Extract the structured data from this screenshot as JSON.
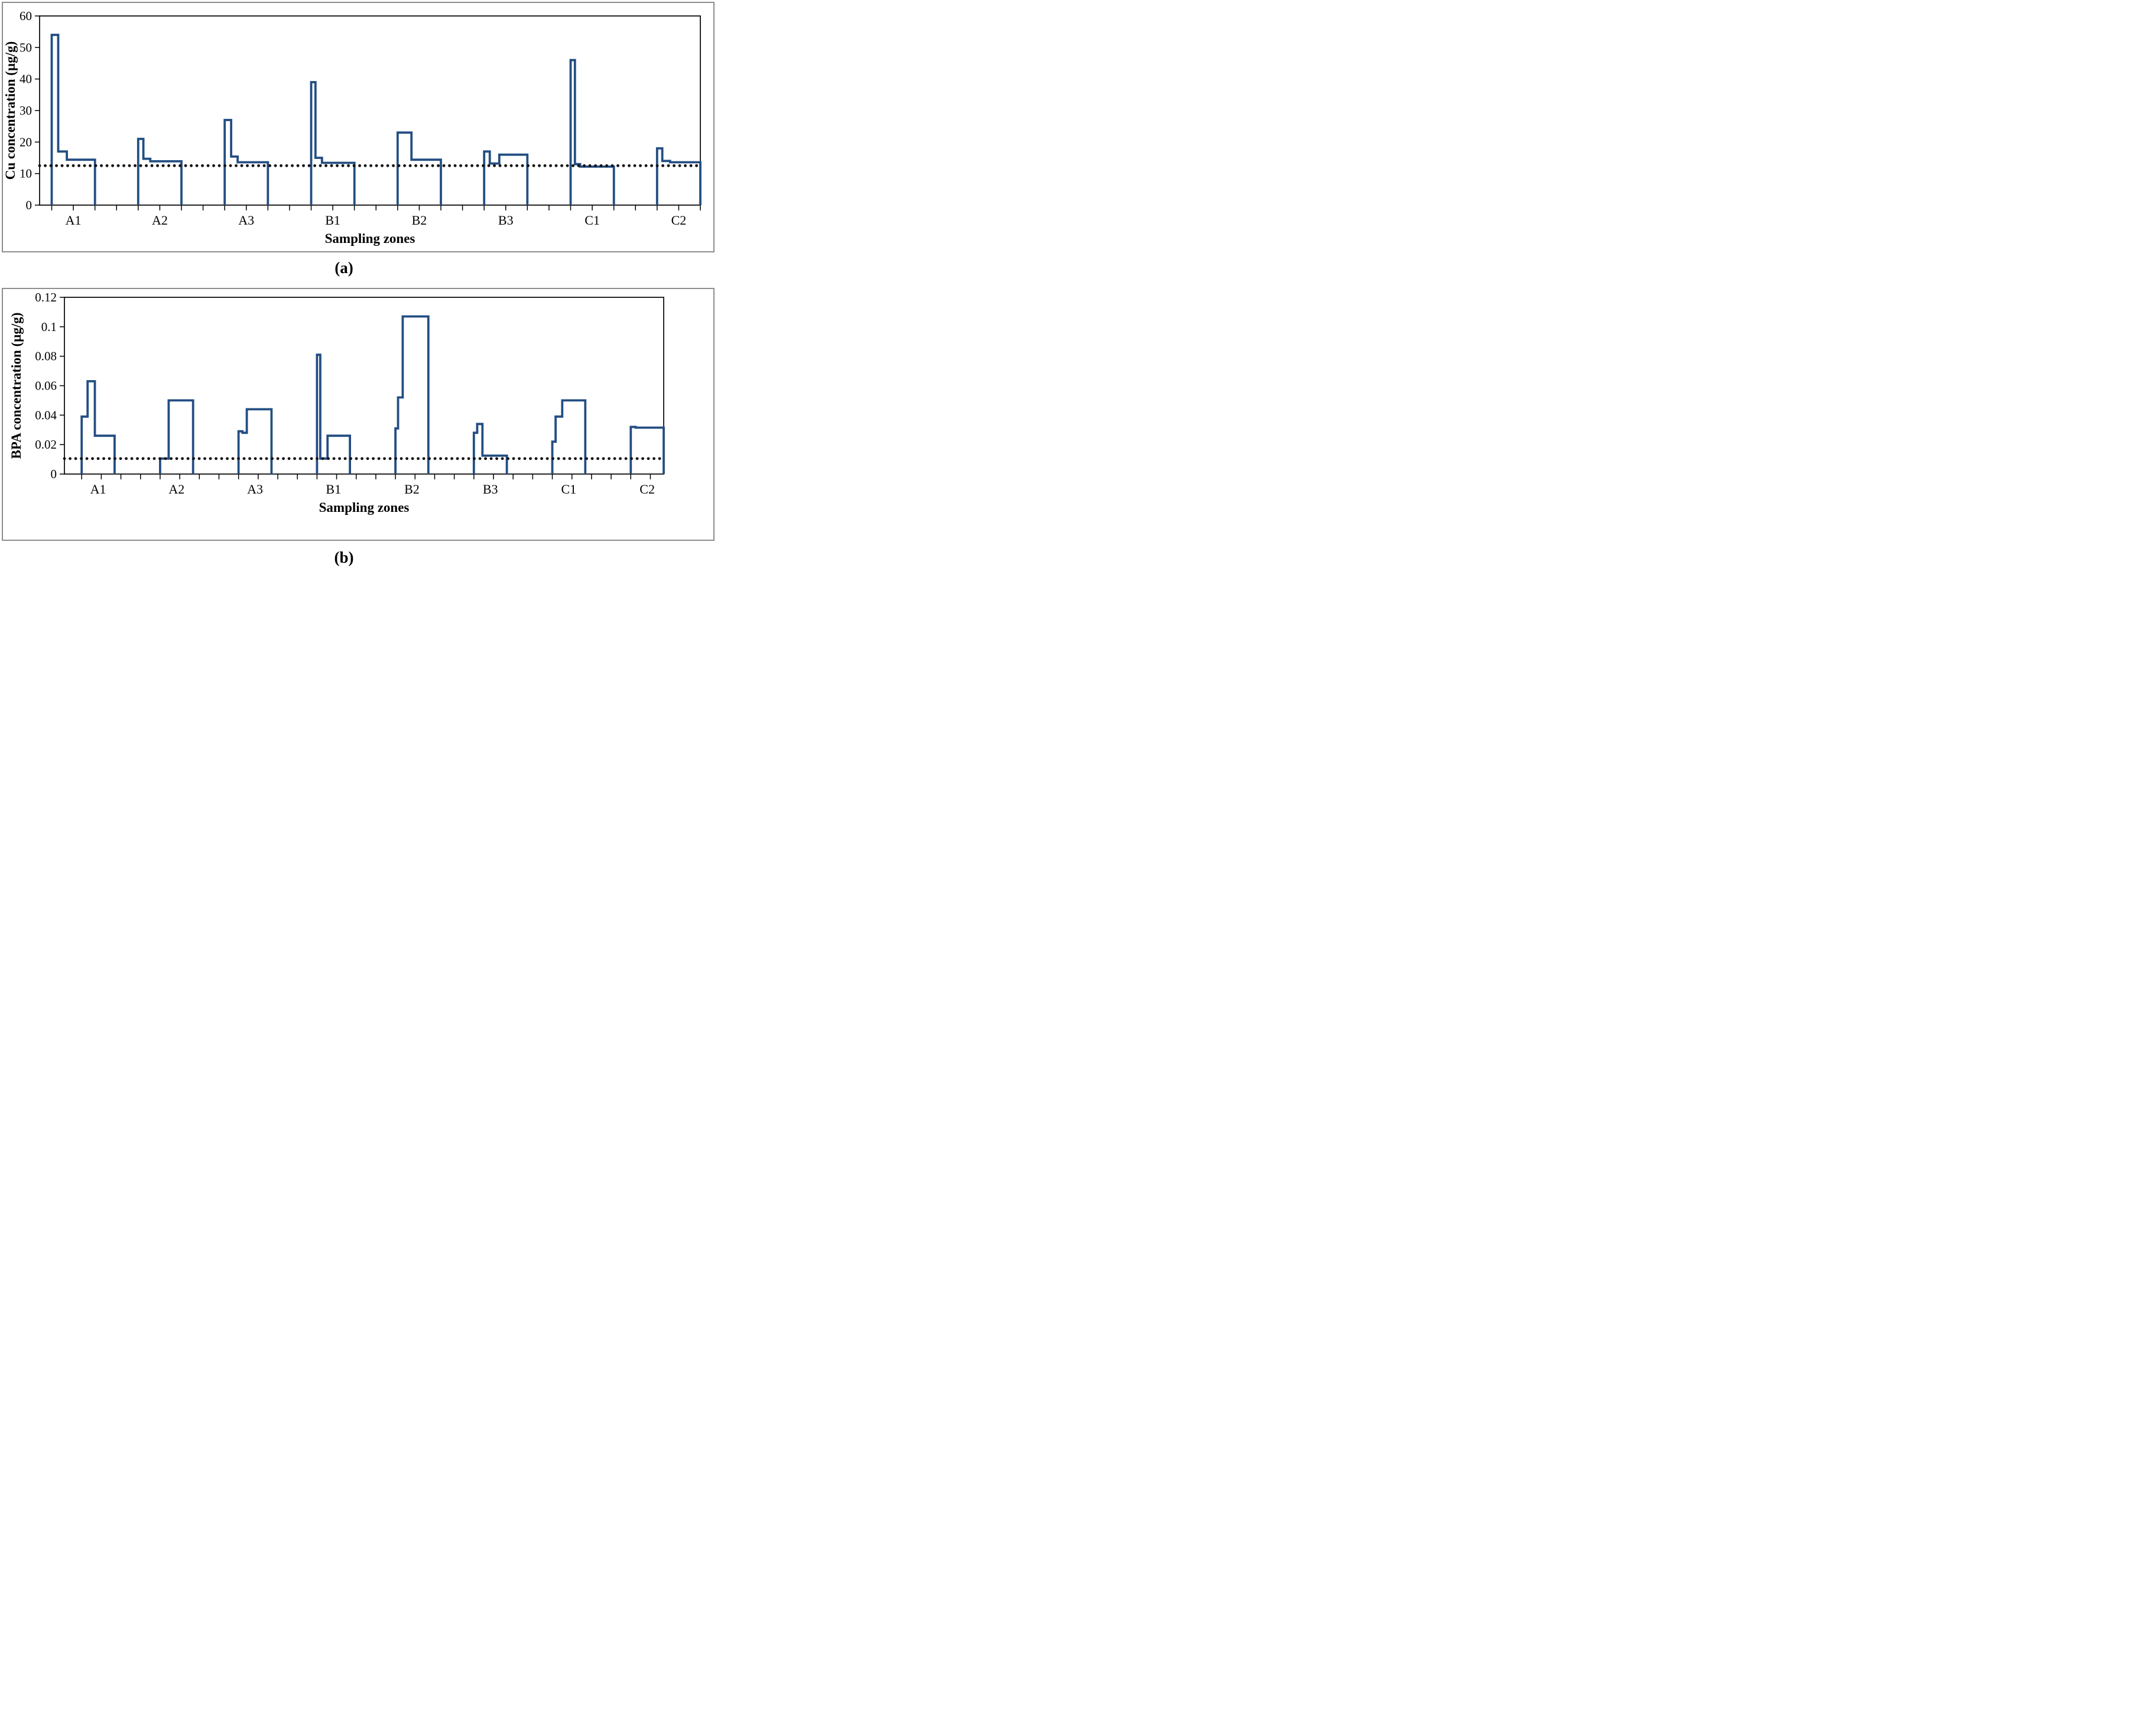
{
  "figure": {
    "panel_a_label": "(a)",
    "panel_b_label": "(b)"
  },
  "colors": {
    "line": "#234e83",
    "reference_line": "#111111",
    "axis": "#000000",
    "panel_border": "#8d8d8d",
    "text": "#000000"
  },
  "chart_data": [
    {
      "type": "line",
      "subtype": "step",
      "panel": "a",
      "ylabel": "Cu concentration (µg/g)",
      "xlabel": "Sampling zones",
      "ylim": [
        0,
        60
      ],
      "yticks": [
        0,
        10,
        20,
        30,
        40,
        50,
        60
      ],
      "ytick_labels": [
        "0",
        "10",
        "20",
        "30",
        "40",
        "50",
        "60"
      ],
      "reference_line_value": 12.5,
      "grid": false,
      "legend": "none",
      "categories": [
        "A1",
        "A2",
        "A3",
        "B1",
        "B2",
        "B3",
        "C1",
        "C2"
      ],
      "zones": [
        {
          "zone": "A1",
          "steps": [
            {
              "value": 54,
              "width": 0.15
            },
            {
              "value": 17,
              "width": 0.2
            },
            {
              "value": 14.4,
              "width": 0.65
            }
          ]
        },
        {
          "zone": "A2",
          "steps": [
            {
              "value": 21,
              "width": 0.12
            },
            {
              "value": 14.7,
              "width": 0.16
            },
            {
              "value": 13.9,
              "width": 0.72
            }
          ]
        },
        {
          "zone": "A3",
          "steps": [
            {
              "value": 27,
              "width": 0.15
            },
            {
              "value": 15.4,
              "width": 0.15
            },
            {
              "value": 13.6,
              "width": 0.7
            }
          ]
        },
        {
          "zone": "B1",
          "steps": [
            {
              "value": 39,
              "width": 0.1
            },
            {
              "value": 15,
              "width": 0.15
            },
            {
              "value": 13.4,
              "width": 0.75
            }
          ]
        },
        {
          "zone": "B2",
          "steps": [
            {
              "value": 23,
              "width": 0.32
            },
            {
              "value": 14.4,
              "width": 0.68
            }
          ]
        },
        {
          "zone": "B3",
          "steps": [
            {
              "value": 17,
              "width": 0.13
            },
            {
              "value": 13.2,
              "width": 0.22
            },
            {
              "value": 16,
              "width": 0.65
            }
          ]
        },
        {
          "zone": "C1",
          "steps": [
            {
              "value": 46,
              "width": 0.1
            },
            {
              "value": 13,
              "width": 0.12
            },
            {
              "value": 12.2,
              "width": 0.78
            }
          ]
        },
        {
          "zone": "C2",
          "steps": [
            {
              "value": 18,
              "width": 0.12
            },
            {
              "value": 14,
              "width": 0.18
            },
            {
              "value": 13.6,
              "width": 0.7
            }
          ]
        }
      ]
    },
    {
      "type": "line",
      "subtype": "step",
      "panel": "b",
      "ylabel": "BPA concentration (µg/g)",
      "xlabel": "Sampling zones",
      "ylim": [
        0,
        0.12
      ],
      "yticks": [
        0,
        0.02,
        0.04,
        0.06,
        0.08,
        0.1,
        0.12
      ],
      "ytick_labels": [
        "0",
        "0.02",
        "0.04",
        "0.06",
        "0.08",
        "0.1",
        "0.12"
      ],
      "reference_line_value": 0.0105,
      "grid": false,
      "legend": "none",
      "categories": [
        "A1",
        "A2",
        "A3",
        "B1",
        "B2",
        "B3",
        "C1",
        "C2"
      ],
      "zones": [
        {
          "zone": "A1",
          "steps": [
            {
              "value": 0.039,
              "width": 0.18
            },
            {
              "value": 0.063,
              "width": 0.22
            },
            {
              "value": 0.026,
              "width": 0.6
            }
          ]
        },
        {
          "zone": "A2",
          "steps": [
            {
              "value": 0.0105,
              "width": 0.26
            },
            {
              "value": 0.05,
              "width": 0.74
            }
          ]
        },
        {
          "zone": "A3",
          "steps": [
            {
              "value": 0.029,
              "width": 0.12
            },
            {
              "value": 0.028,
              "width": 0.13
            },
            {
              "value": 0.044,
              "width": 0.75
            }
          ]
        },
        {
          "zone": "B1",
          "steps": [
            {
              "value": 0.081,
              "width": 0.1
            },
            {
              "value": 0.0105,
              "width": 0.22
            },
            {
              "value": 0.026,
              "width": 0.68
            }
          ]
        },
        {
          "zone": "B2",
          "steps": [
            {
              "value": 0.031,
              "width": 0.08
            },
            {
              "value": 0.052,
              "width": 0.14
            },
            {
              "value": 0.107,
              "width": 0.78
            }
          ]
        },
        {
          "zone": "B3",
          "steps": [
            {
              "value": 0.028,
              "width": 0.1
            },
            {
              "value": 0.034,
              "width": 0.16
            },
            {
              "value": 0.0125,
              "width": 0.74
            }
          ]
        },
        {
          "zone": "C1",
          "steps": [
            {
              "value": 0.022,
              "width": 0.1
            },
            {
              "value": 0.039,
              "width": 0.2
            },
            {
              "value": 0.05,
              "width": 0.7
            }
          ]
        },
        {
          "zone": "C2",
          "steps": [
            {
              "value": 0.032,
              "width": 0.15
            },
            {
              "value": 0.0315,
              "width": 0.85
            }
          ]
        }
      ]
    }
  ]
}
